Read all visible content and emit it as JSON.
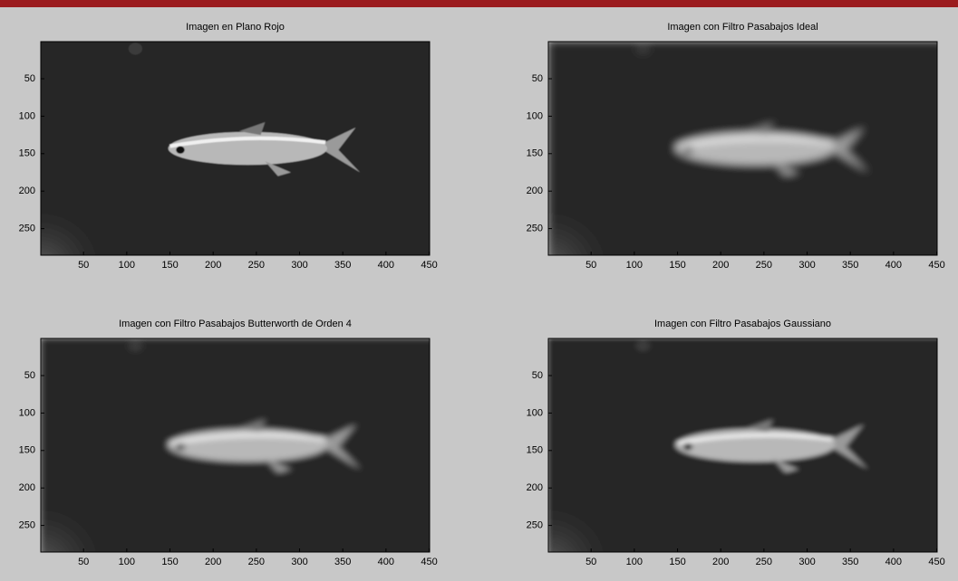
{
  "panels": [
    {
      "title": "Imagen en Plano Rojo",
      "xlim": [
        0.5,
        450.5
      ],
      "ylim": [
        0.5,
        285.5
      ],
      "xticks": [
        50,
        100,
        150,
        200,
        250,
        300,
        350,
        400,
        450
      ],
      "yticks": [
        50,
        100,
        150,
        200,
        250
      ]
    },
    {
      "title": "Imagen con Filtro Pasabajos Ideal",
      "xlim": [
        0.5,
        450.5
      ],
      "ylim": [
        0.5,
        285.5
      ],
      "xticks": [
        50,
        100,
        150,
        200,
        250,
        300,
        350,
        400,
        450
      ],
      "yticks": [
        50,
        100,
        150,
        200,
        250
      ]
    },
    {
      "title": "Imagen con Filtro Pasabajos Butterworth de Orden 4",
      "xlim": [
        0.5,
        450.5
      ],
      "ylim": [
        0.5,
        285.5
      ],
      "xticks": [
        50,
        100,
        150,
        200,
        250,
        300,
        350,
        400,
        450
      ],
      "yticks": [
        50,
        100,
        150,
        200,
        250
      ]
    },
    {
      "title": "Imagen con Filtro Pasabajos Gaussiano",
      "xlim": [
        0.5,
        450.5
      ],
      "ylim": [
        0.5,
        285.5
      ],
      "xticks": [
        50,
        100,
        150,
        200,
        250,
        300,
        350,
        400,
        450
      ],
      "yticks": [
        50,
        100,
        150,
        200,
        250
      ]
    }
  ]
}
